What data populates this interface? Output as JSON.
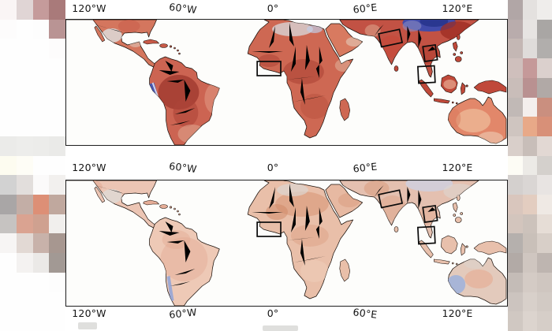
{
  "figure": {
    "kind": "two-panel tropical anomaly world maps",
    "tick_rows": [
      {
        "position": "top",
        "labels": [
          "120°W",
          "60°W",
          "0°",
          "60°E",
          "120°E"
        ]
      },
      {
        "position": "middle",
        "labels": [
          "120°W",
          "60°W",
          "0°",
          "60°E",
          "120°E"
        ]
      },
      {
        "position": "bottom",
        "labels": [
          "120°W",
          "60°W",
          "0°",
          "60°E",
          "120°E"
        ]
      }
    ],
    "highlight_regions": [
      "West Africa (Gulf of Guinea coast)",
      "Northern India",
      "Vietnam coast",
      "Malay Peninsula / Sumatra"
    ],
    "colors": {
      "ocean": "#fdfdfb",
      "frame": "#1f1f1f",
      "warm_strong": "#a03a30",
      "warm_base": "#cc6452",
      "warm_pale": "#eec9b6",
      "cool_strong": "#3a4bb0",
      "cool_pale": "#9db1dc",
      "no_data_land": "#ddd6d3",
      "highlight_box": "#0a0a0a"
    }
  },
  "chart_data": {
    "type": "heatmap",
    "subtype": "geographic anomaly maps, equirectangular, ~135°W–150°E, ~35°N–40°S",
    "x_axis": {
      "ticks": [
        "120°W",
        "60°W",
        "0°",
        "60°E",
        "120°E"
      ],
      "tick_rows_shown": [
        "above top map",
        "between maps",
        "below bottom map"
      ]
    },
    "panels": [
      {
        "position": "top",
        "dominant_anomaly": "strong warm (dark red) over South America, Africa, India, SE Asia, Indonesia, Australia",
        "cool_features": [
          "dark blue Tibetan Plateau / Himalaya",
          "blue-white stripe along Peru–Chile coast"
        ],
        "no_data_gray": [
          "central Mexico",
          "parts of Sahara"
        ]
      },
      {
        "position": "bottom",
        "dominant_anomaly": "weak pale warm (light pink) over same landmasses",
        "cool_features": [
          "small blue stripe on Chile coast",
          "blue patch in southwest Australia",
          "pale blue hints over Tibet"
        ],
        "no_data_gray": [
          "central Mexico",
          "northern China fringe"
        ]
      }
    ],
    "highlight_boxes_per_panel": 4,
    "ocean": "masked (white)"
  },
  "mosaic": {
    "left": {
      "rows": [
        [
          "#faf5f5",
          "#e0d5d5",
          "#c59b9b",
          "#a97a7a"
        ],
        [
          "#fdfcfc",
          "#fefefe",
          "#fdfdfd",
          "#b99494"
        ],
        [
          "#fefefe",
          "#fefefe",
          "#fefefe",
          "#fdfcfc"
        ],
        [
          "#fefefe",
          "#fefefe",
          "#fefefe",
          "#fefefe"
        ],
        [
          "#fefefe",
          "#fefefe",
          "#fefefe",
          "#fefefe"
        ],
        [
          "#fefefe",
          "#fefefe",
          "#fefefe",
          "#fefefe"
        ],
        [
          "#fefefe",
          "#fefefe",
          "#fefefe",
          "#fefefe"
        ],
        [
          "#ebebe9",
          "#ededeb",
          "#ececea",
          "#eaeae8"
        ],
        [
          "#fdfcf0",
          "#fefdf6",
          "#fefefe",
          "#fefefe"
        ],
        [
          "#d2d2d2",
          "#e2dedc",
          "#fbfafa",
          "#f2f0ee"
        ],
        [
          "#a9a6a6",
          "#c3aea6",
          "#dd8f76",
          "#c0a89e"
        ],
        [
          "#c6c3c1",
          "#daa391",
          "#cfa190",
          "#f1efed"
        ],
        [
          "#f7f5f4",
          "#e2d9d4",
          "#c8b2aa",
          "#a79790"
        ],
        [
          "#fefefe",
          "#f4f2f1",
          "#ebe9e7",
          "#a29994"
        ],
        [
          "#fefefe",
          "#fefefe",
          "#fefefe",
          "#fdfdfd"
        ],
        [
          "#fefefe",
          "#fefefe",
          "#fefefe",
          "#fefefe"
        ],
        [
          "#fefefe",
          "#fefefe",
          "#fefefe",
          "#fefefe"
        ]
      ]
    },
    "right": {
      "rows": [
        [
          "#b1a6a6",
          "#e4e1df",
          "#efedeb"
        ],
        [
          "#b9acac",
          "#e7e4e2",
          "#a9a6a4"
        ],
        [
          "#c4b7b4",
          "#dfdcda",
          "#b1aeac"
        ],
        [
          "#cfbfbc",
          "#c59999",
          "#dbd0cd"
        ],
        [
          "#c9bdb9",
          "#b99191",
          "#b1a9a6"
        ],
        [
          "#c1b9b6",
          "#f4efed",
          "#ca8f7f"
        ],
        [
          "#cfc5c0",
          "#e8a988",
          "#d89078"
        ],
        [
          "#d9cfca",
          "#c8beb9",
          "#e2d8d3"
        ],
        [
          "#fdfcf5",
          "#eceae6",
          "#d4d0cc"
        ],
        [
          "#d4d0ce",
          "#dad6d4",
          "#e8e4e2"
        ],
        [
          "#d9c6bd",
          "#e3cdc0",
          "#efe9e4"
        ],
        [
          "#d3c5bd",
          "#ccc2bb",
          "#e6ddd6"
        ],
        [
          "#b5b0ad",
          "#c9c0b9",
          "#d8cfc8"
        ],
        [
          "#b2aaa6",
          "#cfc6c0",
          "#beb5b0"
        ],
        [
          "#c4bcb7",
          "#d4cbc5",
          "#cfc6c0"
        ],
        [
          "#ccc4bf",
          "#d8d0ca",
          "#d2cac4"
        ],
        [
          "#d0c8c2",
          "#dcd4ce",
          "#d6cec8"
        ]
      ]
    }
  }
}
